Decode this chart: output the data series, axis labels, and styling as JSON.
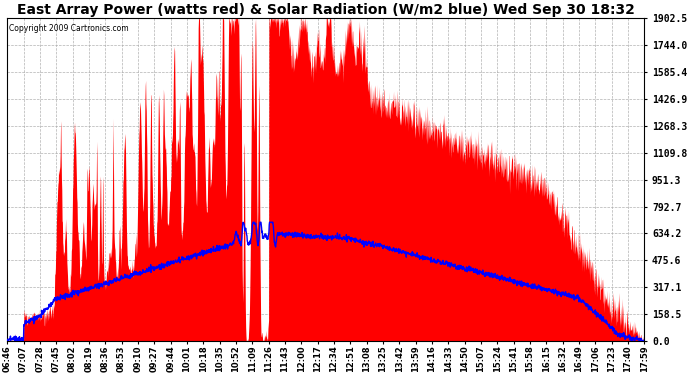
{
  "title": "East Array Power (watts red) & Solar Radiation (W/m2 blue) Wed Sep 30 18:32",
  "copyright": "Copyright 2009 Cartronics.com",
  "y_ticks": [
    0.0,
    158.5,
    317.1,
    475.6,
    634.2,
    792.7,
    951.3,
    1109.8,
    1268.3,
    1426.9,
    1585.4,
    1744.0,
    1902.5
  ],
  "x_labels": [
    "06:46",
    "07:07",
    "07:28",
    "07:45",
    "08:02",
    "08:19",
    "08:36",
    "08:53",
    "09:10",
    "09:27",
    "09:44",
    "10:01",
    "10:18",
    "10:35",
    "10:52",
    "11:09",
    "11:26",
    "11:43",
    "12:00",
    "12:17",
    "12:34",
    "12:51",
    "13:08",
    "13:25",
    "13:42",
    "13:59",
    "14:16",
    "14:33",
    "14:50",
    "15:07",
    "15:24",
    "15:41",
    "15:58",
    "16:15",
    "16:32",
    "16:49",
    "17:06",
    "17:23",
    "17:40",
    "17:59"
  ],
  "background_color": "#ffffff",
  "plot_bg_color": "#ffffff",
  "grid_color": "#aaaaaa",
  "red_fill_color": "#ff0000",
  "blue_line_color": "#0000ff",
  "title_fontsize": 10,
  "ymax": 1902.5,
  "ymin": 0.0
}
